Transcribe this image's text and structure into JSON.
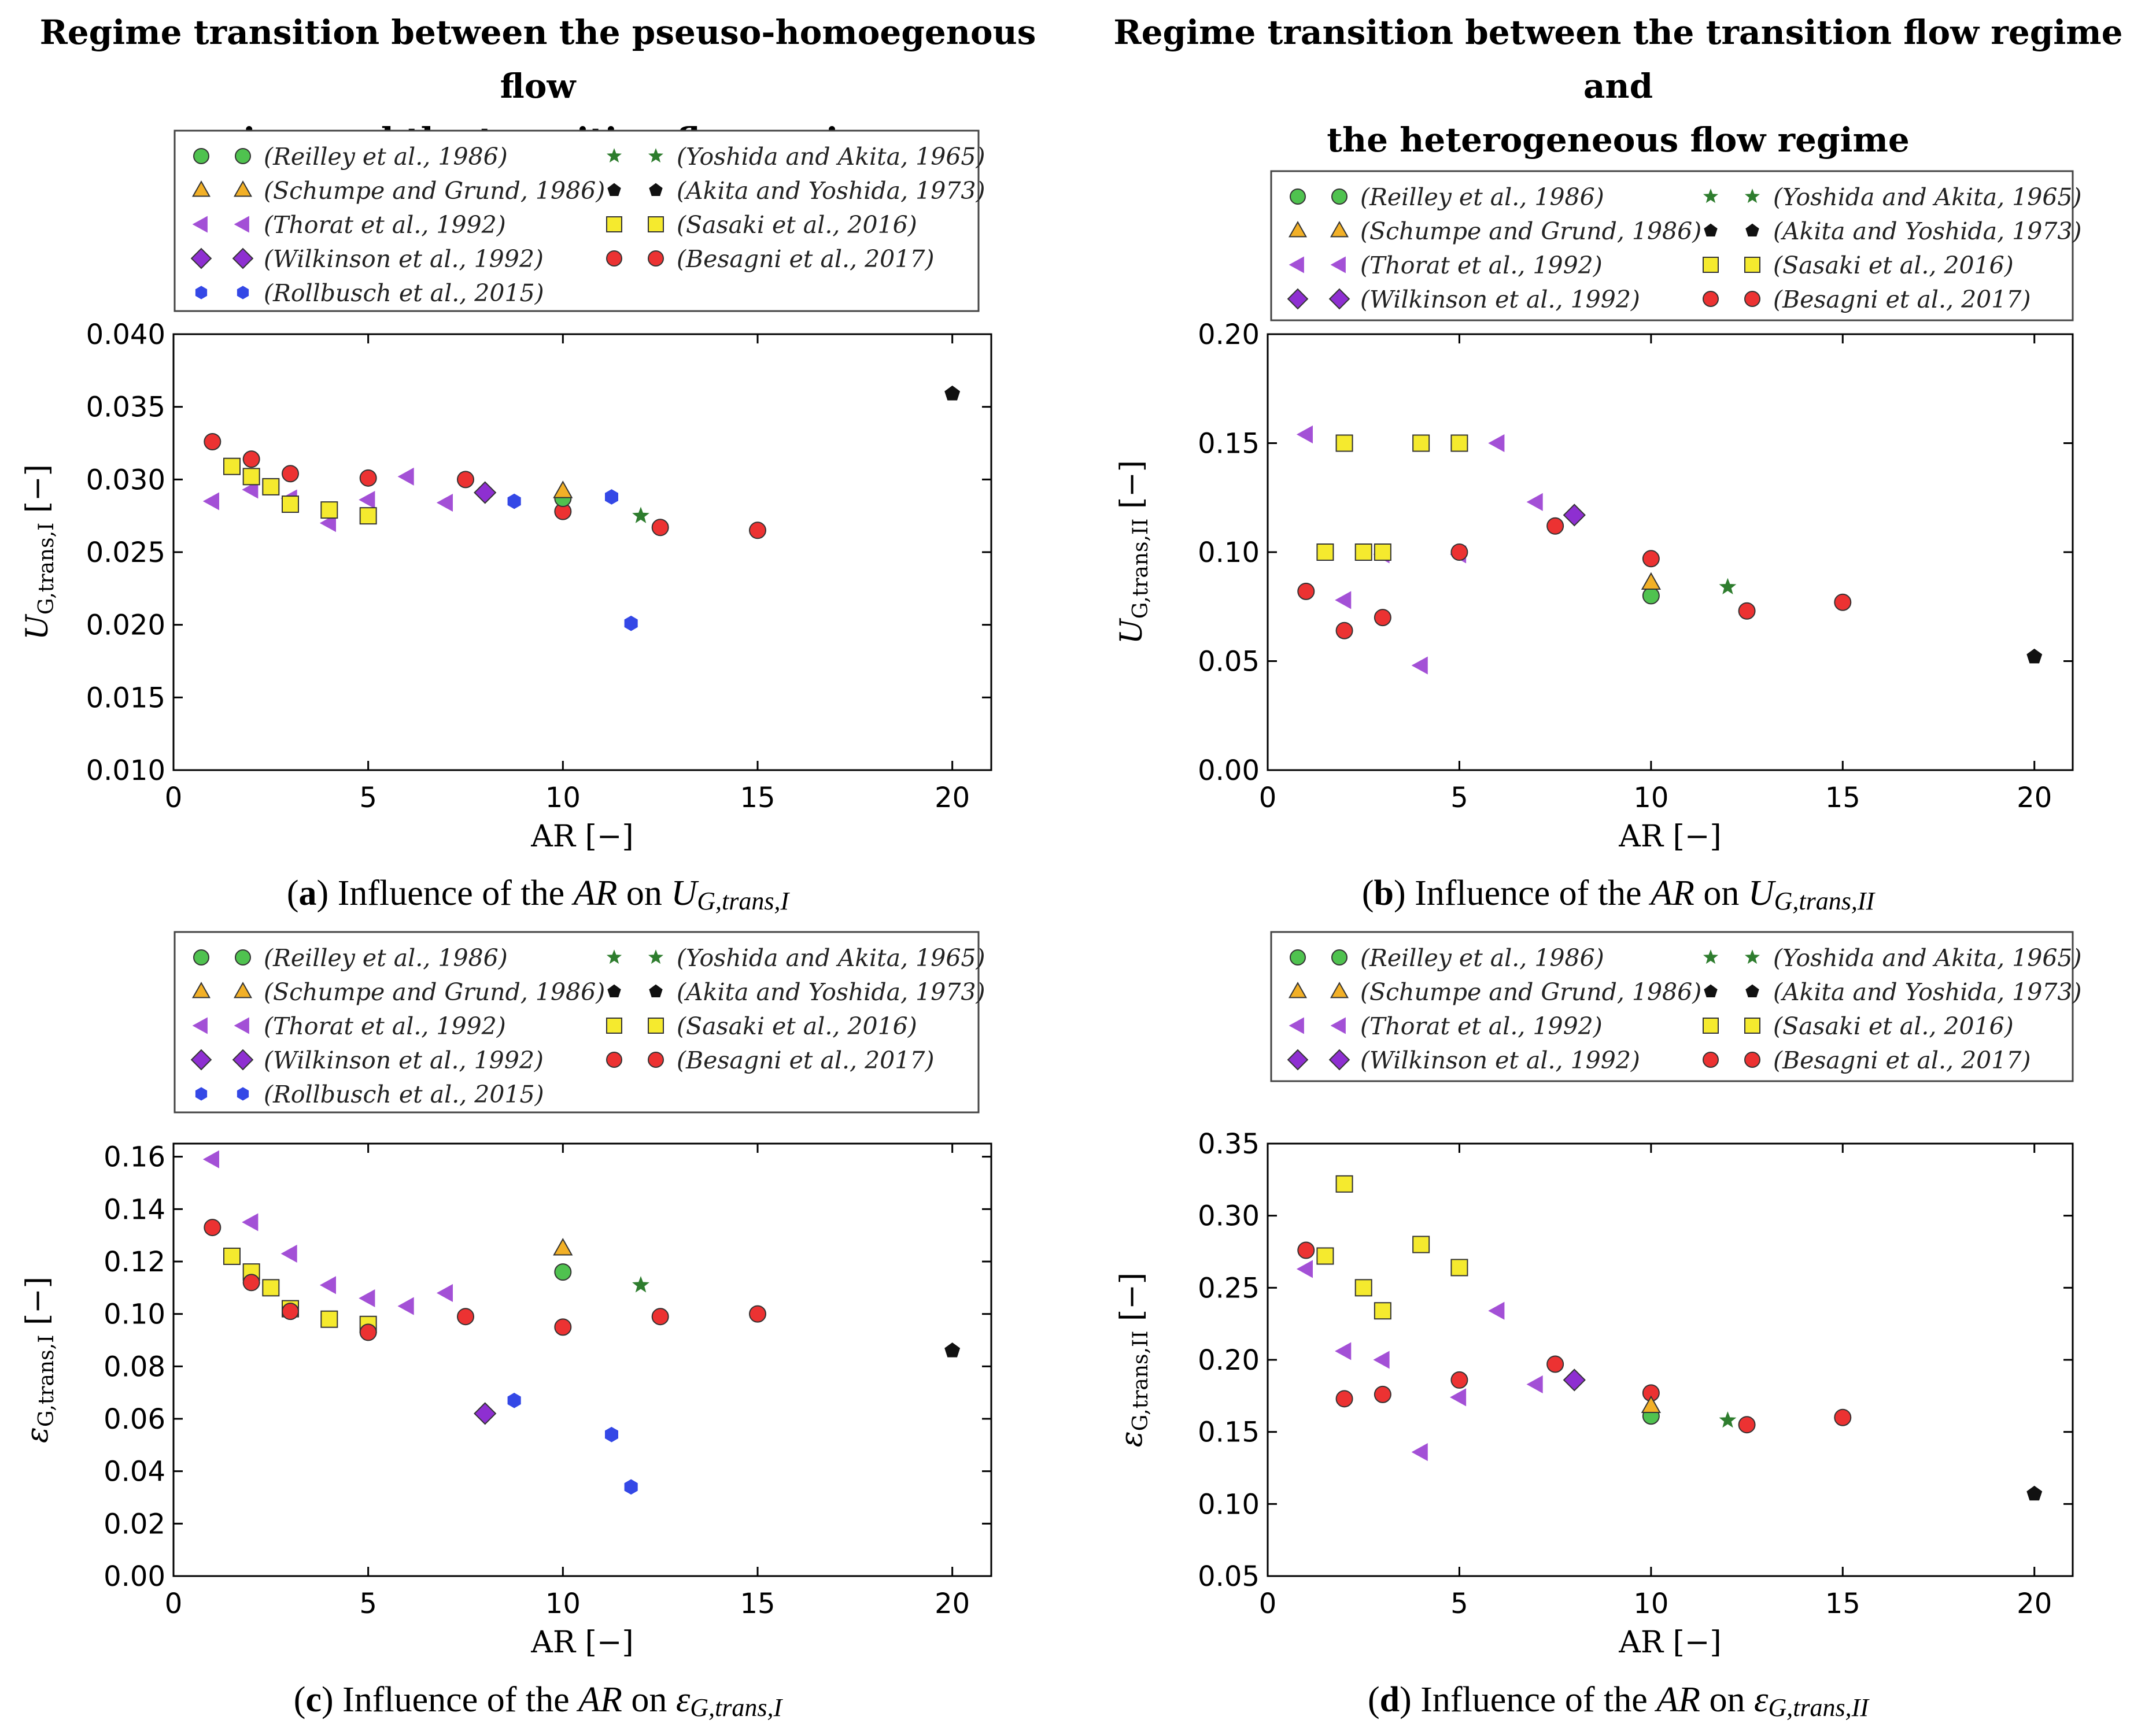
{
  "headings": {
    "left": [
      "Regime transition between the pseuso-homoegenous flow",
      "regime and the transition flow regime"
    ],
    "right": [
      "Regime transition between the transition flow regime and",
      "the heterogeneous flow regime"
    ]
  },
  "captions": {
    "a": {
      "letter": "a",
      "text": "Influence of the",
      "var": "AR",
      "on": "on",
      "sym": "U",
      "sub": "G,trans,I"
    },
    "b": {
      "letter": "b",
      "text": "Influence of the",
      "var": "AR",
      "on": "on",
      "sym": "U",
      "sub": "G,trans,II"
    },
    "c": {
      "letter": "c",
      "text": "Influence of the",
      "var": "AR",
      "on": "on",
      "sym": "ε",
      "sub": "G,trans,I"
    },
    "d": {
      "letter": "d",
      "text": "Influence of the",
      "var": "AR",
      "on": "on",
      "sym": "ε",
      "sub": "G,trans,II"
    }
  },
  "series_styles": {
    "Reilley": {
      "label": "(Reilley et al., 1986)",
      "marker": "circle",
      "color": "#4fc24f"
    },
    "Schumpe": {
      "label": "(Schumpe and Grund, 1986)",
      "marker": "triangle",
      "color": "#f2b027"
    },
    "Thorat": {
      "label": "(Thorat et al., 1992)",
      "marker": "left-triangle",
      "color": "#a350d6"
    },
    "Wilkinson": {
      "label": "(Wilkinson et al., 1992)",
      "marker": "diamond",
      "color": "#8e2fd1"
    },
    "Rollbusch": {
      "label": "(Rollbusch et al., 2015)",
      "marker": "hexagon",
      "color": "#3448e6"
    },
    "Yoshida": {
      "label": "(Yoshida and Akita, 1965)",
      "marker": "star",
      "color": "#2e7d2e"
    },
    "Akita": {
      "label": "(Akita and Yoshida, 1973)",
      "marker": "pentagon",
      "color": "#111111"
    },
    "Sasaki": {
      "label": "(Sasaki et al., 2016)",
      "marker": "square",
      "color": "#f5ea2e"
    },
    "Besagni": {
      "label": "(Besagni et al., 2017)",
      "marker": "circle",
      "color": "#ec3232"
    }
  },
  "chart_data": [
    {
      "id": "a",
      "type": "scatter",
      "title": "",
      "xlabel": "AR [−]",
      "ylabel": "U_G,trans,I [−]",
      "ylabel_sym": "U",
      "ylabel_sub": "G,trans,I",
      "xlim": [
        0,
        21
      ],
      "ylim": [
        0.01,
        0.04
      ],
      "xticks": [
        0,
        5,
        10,
        15,
        20
      ],
      "xtick_labels": [
        "0",
        "5",
        "10",
        "15",
        "20"
      ],
      "yticks": [
        0.01,
        0.015,
        0.02,
        0.025,
        0.03,
        0.035,
        0.04
      ],
      "ytick_labels": [
        "0.010",
        "0.015",
        "0.020",
        "0.025",
        "0.030",
        "0.035",
        "0.040"
      ],
      "legend": {
        "left": [
          "Reilley",
          "Schumpe",
          "Thorat",
          "Wilkinson",
          "Rollbusch"
        ],
        "right": [
          "Yoshida",
          "Akita",
          "Sasaki",
          "Besagni"
        ]
      },
      "series": [
        {
          "key": "Thorat",
          "x": [
            1,
            2,
            3,
            4,
            5,
            6,
            7
          ],
          "y": [
            0.0285,
            0.0293,
            0.0287,
            0.027,
            0.0286,
            0.0302,
            0.0284
          ]
        },
        {
          "key": "Sasaki",
          "x": [
            1.5,
            2,
            2.5,
            3,
            4,
            5
          ],
          "y": [
            0.0309,
            0.0302,
            0.0295,
            0.0283,
            0.0279,
            0.0275
          ]
        },
        {
          "key": "Besagni",
          "x": [
            1,
            2,
            3,
            5,
            7.5,
            10,
            12.5,
            15
          ],
          "y": [
            0.0326,
            0.0314,
            0.0304,
            0.0301,
            0.03,
            0.0278,
            0.0267,
            0.0265
          ]
        },
        {
          "key": "Wilkinson",
          "x": [
            8
          ],
          "y": [
            0.0291
          ]
        },
        {
          "key": "Rollbusch",
          "x": [
            8.75,
            11.25,
            11.75
          ],
          "y": [
            0.0285,
            0.0288,
            0.0201
          ]
        },
        {
          "key": "Reilley",
          "x": [
            10
          ],
          "y": [
            0.0287
          ]
        },
        {
          "key": "Schumpe",
          "x": [
            10
          ],
          "y": [
            0.0292
          ]
        },
        {
          "key": "Yoshida",
          "x": [
            12
          ],
          "y": [
            0.0275
          ]
        },
        {
          "key": "Akita",
          "x": [
            20
          ],
          "y": [
            0.0359
          ]
        }
      ]
    },
    {
      "id": "b",
      "type": "scatter",
      "title": "",
      "xlabel": "AR [−]",
      "ylabel": "U_G,trans,II [−]",
      "ylabel_sym": "U",
      "ylabel_sub": "G,trans,II",
      "xlim": [
        0,
        21
      ],
      "ylim": [
        0.0,
        0.2
      ],
      "xticks": [
        0,
        5,
        10,
        15,
        20
      ],
      "xtick_labels": [
        "0",
        "5",
        "10",
        "15",
        "20"
      ],
      "yticks": [
        0.0,
        0.05,
        0.1,
        0.15,
        0.2
      ],
      "ytick_labels": [
        "0.00",
        "0.05",
        "0.10",
        "0.15",
        "0.20"
      ],
      "legend": {
        "left": [
          "Reilley",
          "Schumpe",
          "Thorat",
          "Wilkinson"
        ],
        "right": [
          "Yoshida",
          "Akita",
          "Sasaki",
          "Besagni"
        ]
      },
      "series": [
        {
          "key": "Thorat",
          "x": [
            1,
            2,
            3,
            4,
            5,
            6,
            7
          ],
          "y": [
            0.154,
            0.078,
            0.099,
            0.048,
            0.099,
            0.15,
            0.123
          ]
        },
        {
          "key": "Sasaki",
          "x": [
            1.5,
            2,
            2.5,
            3,
            4,
            5
          ],
          "y": [
            0.1,
            0.15,
            0.1,
            0.1,
            0.15,
            0.15
          ]
        },
        {
          "key": "Besagni",
          "x": [
            1,
            2,
            3,
            5,
            7.5,
            10,
            12.5,
            15
          ],
          "y": [
            0.082,
            0.064,
            0.07,
            0.1,
            0.112,
            0.097,
            0.073,
            0.077
          ]
        },
        {
          "key": "Wilkinson",
          "x": [
            8
          ],
          "y": [
            0.117
          ]
        },
        {
          "key": "Reilley",
          "x": [
            10
          ],
          "y": [
            0.08
          ]
        },
        {
          "key": "Schumpe",
          "x": [
            10
          ],
          "y": [
            0.086
          ]
        },
        {
          "key": "Yoshida",
          "x": [
            12
          ],
          "y": [
            0.084
          ]
        },
        {
          "key": "Akita",
          "x": [
            20
          ],
          "y": [
            0.052
          ]
        }
      ]
    },
    {
      "id": "c",
      "type": "scatter",
      "title": "",
      "xlabel": "AR [−]",
      "ylabel": "ε_G,trans,I [−]",
      "ylabel_sym": "ε",
      "ylabel_sub": "G,trans,I",
      "xlim": [
        0,
        21
      ],
      "ylim": [
        0.0,
        0.165
      ],
      "xticks": [
        0,
        5,
        10,
        15,
        20
      ],
      "xtick_labels": [
        "0",
        "5",
        "10",
        "15",
        "20"
      ],
      "yticks": [
        0.0,
        0.02,
        0.04,
        0.06,
        0.08,
        0.1,
        0.12,
        0.14,
        0.16
      ],
      "ytick_labels": [
        "0.00",
        "0.02",
        "0.04",
        "0.06",
        "0.08",
        "0.10",
        "0.12",
        "0.14",
        "0.16"
      ],
      "legend": {
        "left": [
          "Reilley",
          "Schumpe",
          "Thorat",
          "Wilkinson",
          "Rollbusch"
        ],
        "right": [
          "Yoshida",
          "Akita",
          "Sasaki",
          "Besagni"
        ]
      },
      "series": [
        {
          "key": "Thorat",
          "x": [
            1,
            2,
            3,
            4,
            5,
            6,
            7
          ],
          "y": [
            0.159,
            0.135,
            0.123,
            0.111,
            0.106,
            0.103,
            0.108
          ]
        },
        {
          "key": "Sasaki",
          "x": [
            1.5,
            2,
            2.5,
            3,
            4,
            5
          ],
          "y": [
            0.122,
            0.116,
            0.11,
            0.102,
            0.098,
            0.096
          ]
        },
        {
          "key": "Besagni",
          "x": [
            1,
            2,
            3,
            5,
            7.5,
            10,
            12.5,
            15
          ],
          "y": [
            0.133,
            0.112,
            0.101,
            0.093,
            0.099,
            0.095,
            0.099,
            0.1
          ]
        },
        {
          "key": "Wilkinson",
          "x": [
            8
          ],
          "y": [
            0.062
          ]
        },
        {
          "key": "Rollbusch",
          "x": [
            8.75,
            11.25,
            11.75
          ],
          "y": [
            0.067,
            0.054,
            0.034
          ]
        },
        {
          "key": "Reilley",
          "x": [
            10
          ],
          "y": [
            0.116
          ]
        },
        {
          "key": "Schumpe",
          "x": [
            10
          ],
          "y": [
            0.125
          ]
        },
        {
          "key": "Yoshida",
          "x": [
            12
          ],
          "y": [
            0.111
          ]
        },
        {
          "key": "Akita",
          "x": [
            20
          ],
          "y": [
            0.086
          ]
        }
      ]
    },
    {
      "id": "d",
      "type": "scatter",
      "title": "",
      "xlabel": "AR [−]",
      "ylabel": "ε_G,trans,II [−]",
      "ylabel_sym": "ε",
      "ylabel_sub": "G,trans,II",
      "xlim": [
        0,
        21
      ],
      "ylim": [
        0.05,
        0.35
      ],
      "xticks": [
        0,
        5,
        10,
        15,
        20
      ],
      "xtick_labels": [
        "0",
        "5",
        "10",
        "15",
        "20"
      ],
      "yticks": [
        0.05,
        0.1,
        0.15,
        0.2,
        0.25,
        0.3,
        0.35
      ],
      "ytick_labels": [
        "0.05",
        "0.10",
        "0.15",
        "0.20",
        "0.25",
        "0.30",
        "0.35"
      ],
      "legend": {
        "left": [
          "Reilley",
          "Schumpe",
          "Thorat",
          "Wilkinson"
        ],
        "right": [
          "Yoshida",
          "Akita",
          "Sasaki",
          "Besagni"
        ]
      },
      "series": [
        {
          "key": "Thorat",
          "x": [
            1,
            2,
            3,
            4,
            5,
            6,
            7
          ],
          "y": [
            0.263,
            0.206,
            0.2,
            0.136,
            0.174,
            0.234,
            0.183
          ]
        },
        {
          "key": "Sasaki",
          "x": [
            1.5,
            2,
            2.5,
            3,
            4,
            5
          ],
          "y": [
            0.272,
            0.322,
            0.25,
            0.234,
            0.28,
            0.264
          ]
        },
        {
          "key": "Besagni",
          "x": [
            1,
            2,
            3,
            5,
            7.5,
            10,
            12.5,
            15
          ],
          "y": [
            0.276,
            0.173,
            0.176,
            0.186,
            0.197,
            0.177,
            0.155,
            0.16
          ]
        },
        {
          "key": "Wilkinson",
          "x": [
            8
          ],
          "y": [
            0.186
          ]
        },
        {
          "key": "Reilley",
          "x": [
            10
          ],
          "y": [
            0.161
          ]
        },
        {
          "key": "Schumpe",
          "x": [
            10
          ],
          "y": [
            0.168
          ]
        },
        {
          "key": "Yoshida",
          "x": [
            12
          ],
          "y": [
            0.158
          ]
        },
        {
          "key": "Akita",
          "x": [
            20
          ],
          "y": [
            0.107
          ]
        }
      ]
    }
  ]
}
